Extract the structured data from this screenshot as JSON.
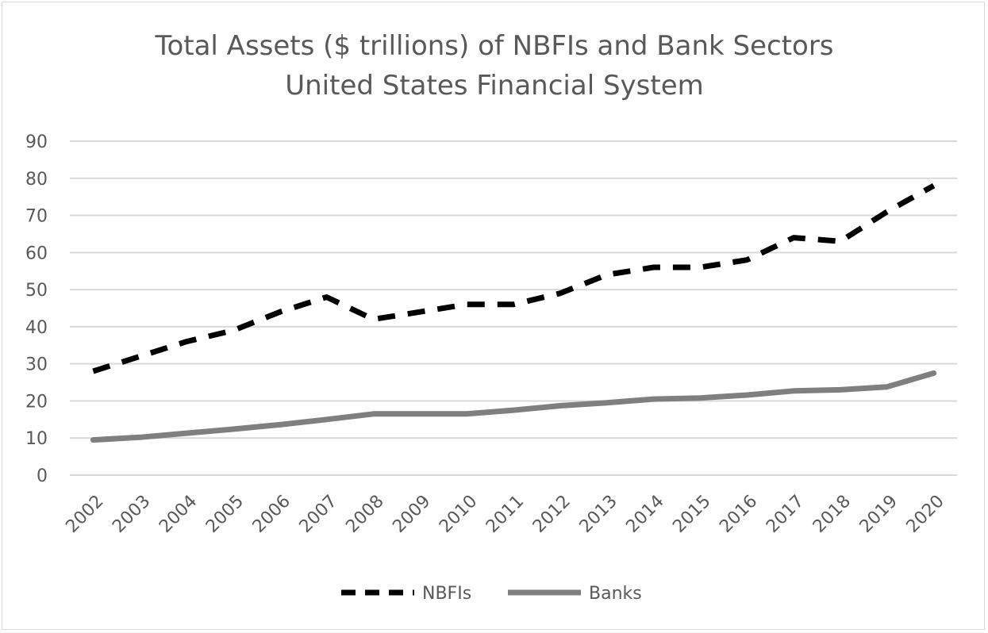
{
  "chart_data": {
    "type": "line",
    "title": "Total Assets ($ trillions) of NBFIs and Bank Sectors",
    "subtitle": "United States Financial System",
    "x": [
      "2002",
      "2003",
      "2004",
      "2005",
      "2006",
      "2007",
      "2008",
      "2009",
      "2010",
      "2011",
      "2012",
      "2013",
      "2014",
      "2015",
      "2016",
      "2017",
      "2018",
      "2019",
      "2020"
    ],
    "y_ticks": [
      "0",
      "10",
      "20",
      "30",
      "40",
      "50",
      "60",
      "70",
      "80",
      "90"
    ],
    "ylim": [
      0,
      90
    ],
    "grid": true,
    "legend_position": "bottom",
    "series": [
      {
        "name": "NBFIs",
        "style": "dashed",
        "color": "#000000",
        "values": [
          28,
          32,
          36,
          39,
          44,
          48,
          42,
          44,
          46,
          46,
          49,
          54,
          56,
          56,
          58,
          64,
          63,
          71,
          78
        ]
      },
      {
        "name": "Banks",
        "style": "solid",
        "color": "#7f7f7f",
        "values": [
          9.5,
          10.2,
          11.3,
          12.4,
          13.6,
          15.0,
          16.5,
          16.5,
          16.5,
          17.5,
          18.7,
          19.5,
          20.5,
          20.8,
          21.6,
          22.7,
          23.0,
          23.8,
          27.5
        ]
      }
    ]
  }
}
